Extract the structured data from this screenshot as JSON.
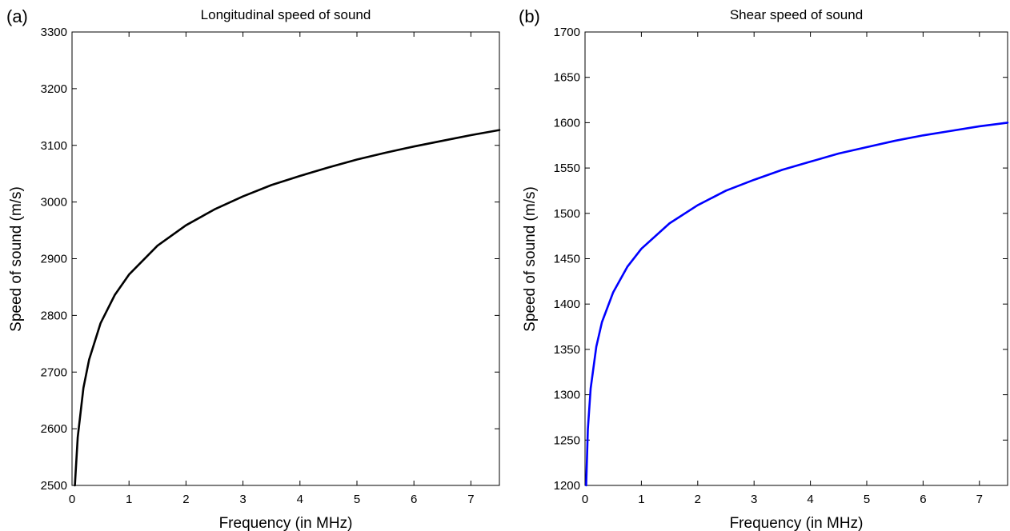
{
  "chart_data": [
    {
      "panel_label": "(a)",
      "type": "line",
      "title": "Longitudinal speed of sound",
      "xlabel": "Frequency (in MHz)",
      "ylabel": "Speed of sound (m/s)",
      "xlim": [
        0,
        7.5
      ],
      "ylim": [
        2500,
        3300
      ],
      "xticks": [
        0,
        1,
        2,
        3,
        4,
        5,
        6,
        7
      ],
      "yticks": [
        2500,
        2600,
        2700,
        2800,
        2900,
        3000,
        3100,
        3200,
        3300
      ],
      "grid": false,
      "series": [
        {
          "color": "#000000",
          "x": [
            0.05,
            0.1,
            0.2,
            0.3,
            0.5,
            0.75,
            1.0,
            1.5,
            2.0,
            2.5,
            3.0,
            3.5,
            4.0,
            4.5,
            5.0,
            5.5,
            6.0,
            6.5,
            7.0,
            7.5
          ],
          "y": [
            2500,
            2585,
            2672,
            2722,
            2786,
            2836,
            2872,
            2923,
            2959,
            2987,
            3010,
            3030,
            3046,
            3061,
            3075,
            3087,
            3098,
            3108,
            3118,
            3127
          ]
        }
      ]
    },
    {
      "panel_label": "(b)",
      "type": "line",
      "title": "Shear speed of sound",
      "xlabel": "Frequency (in MHz)",
      "ylabel": "Speed of sound (m/s)",
      "xlim": [
        0,
        7.5
      ],
      "ylim": [
        1200,
        1700
      ],
      "xticks": [
        0,
        1,
        2,
        3,
        4,
        5,
        6,
        7
      ],
      "yticks": [
        1200,
        1250,
        1300,
        1350,
        1400,
        1450,
        1500,
        1550,
        1600,
        1650,
        1700
      ],
      "grid": false,
      "series": [
        {
          "color": "#0000ff",
          "x": [
            0.02,
            0.05,
            0.1,
            0.2,
            0.3,
            0.5,
            0.75,
            1.0,
            1.5,
            2.0,
            2.5,
            3.0,
            3.5,
            4.0,
            4.5,
            5.0,
            5.5,
            6.0,
            6.5,
            7.0,
            7.5
          ],
          "y": [
            1200,
            1262,
            1307,
            1353,
            1380,
            1413,
            1441,
            1461,
            1489,
            1509,
            1525,
            1537,
            1548,
            1557,
            1566,
            1573,
            1580,
            1586,
            1591,
            1596,
            1600
          ]
        }
      ]
    }
  ]
}
